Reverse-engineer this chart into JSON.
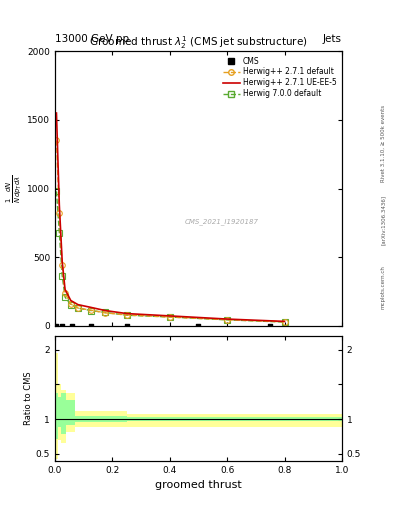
{
  "title": "13000 GeV pp",
  "title_right": "Jets",
  "plot_title": "Groomed thrust $\\lambda_{2}^{1}$ (CMS jet substructure)",
  "xlabel": "groomed thrust",
  "ylabel_ratio": "Ratio to CMS",
  "watermark": "CMS_2021_I1920187",
  "rivet_label": "Rivet 3.1.10, ≥ 500k events",
  "arxiv_label": "[arXiv:1306.3436]",
  "mcplots_label": "mcplots.cern.ch",
  "xlim": [
    0.0,
    1.0
  ],
  "ylim_main": [
    0,
    2000
  ],
  "ylim_ratio": [
    0.4,
    2.2
  ],
  "yticks_main": [
    0,
    500,
    1000,
    1500,
    2000
  ],
  "yticks_ratio": [
    0.5,
    1.0,
    1.5,
    2.0
  ],
  "herwig271_default_x": [
    0.005,
    0.015,
    0.025,
    0.035,
    0.055,
    0.08,
    0.125,
    0.175,
    0.25,
    0.4,
    0.6,
    0.8
  ],
  "herwig271_default_y": [
    1350,
    820,
    440,
    240,
    160,
    130,
    115,
    95,
    80,
    65,
    45,
    30
  ],
  "herwig271_uiee5_x": [
    0.005,
    0.015,
    0.025,
    0.035,
    0.055,
    0.08,
    0.125,
    0.175,
    0.25,
    0.4,
    0.6,
    0.8
  ],
  "herwig271_uiee5_y": [
    1550,
    880,
    470,
    265,
    185,
    155,
    135,
    112,
    90,
    73,
    50,
    33
  ],
  "herwig700_default_x": [
    0.005,
    0.015,
    0.025,
    0.035,
    0.055,
    0.08,
    0.125,
    0.175,
    0.25,
    0.4,
    0.6,
    0.8
  ],
  "herwig700_default_y": [
    980,
    680,
    365,
    210,
    155,
    130,
    112,
    98,
    78,
    65,
    44,
    28
  ],
  "cms_x": [
    0.005,
    0.025,
    0.06,
    0.125,
    0.25,
    0.5,
    0.75
  ],
  "cms_y": [
    3,
    3,
    3,
    3,
    3,
    3,
    3
  ],
  "ratio_edges": [
    0.0,
    0.01,
    0.02,
    0.04,
    0.07,
    0.1,
    0.15,
    0.2,
    0.25,
    0.3,
    0.35,
    0.4,
    0.45,
    0.5,
    0.6,
    0.7,
    0.8,
    0.9,
    1.0
  ],
  "ratio_yellow_lo": [
    0.43,
    0.7,
    0.65,
    0.82,
    0.88,
    0.88,
    0.88,
    0.88,
    0.88,
    0.88,
    0.88,
    0.88,
    0.88,
    0.88,
    0.88,
    0.88,
    0.88,
    0.88
  ],
  "ratio_yellow_hi": [
    1.95,
    1.5,
    1.42,
    1.38,
    1.12,
    1.12,
    1.12,
    1.12,
    1.08,
    1.08,
    1.08,
    1.08,
    1.08,
    1.08,
    1.08,
    1.08,
    1.08,
    1.08
  ],
  "ratio_green_lo": [
    0.72,
    0.88,
    0.78,
    0.92,
    0.96,
    0.96,
    0.96,
    0.96,
    0.97,
    0.97,
    0.97,
    0.97,
    0.97,
    0.97,
    0.97,
    0.97,
    0.97,
    0.97
  ],
  "ratio_green_hi": [
    1.38,
    1.32,
    1.38,
    1.28,
    1.04,
    1.04,
    1.04,
    1.04,
    1.03,
    1.03,
    1.03,
    1.03,
    1.03,
    1.03,
    1.03,
    1.03,
    1.03,
    1.03
  ],
  "color_herwig271_default": "#e6a020",
  "color_herwig271_uiee5": "#cc0000",
  "color_herwig700_default": "#5aaa32",
  "color_cms": "#000000",
  "color_yellow": "#ffff99",
  "color_green": "#99ff99"
}
